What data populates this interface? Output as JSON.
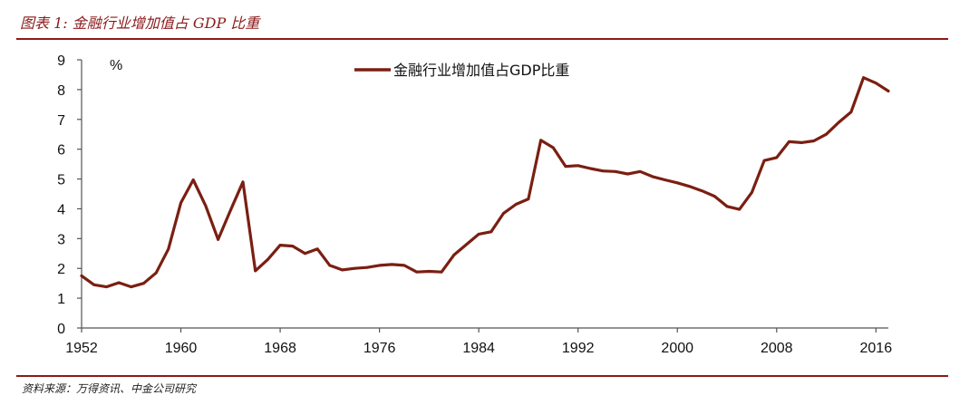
{
  "header": {
    "title": "图表 1: 金融行业增加值占 GDP 比重"
  },
  "footer": {
    "source": "资料来源：万得资讯、中金公司研究"
  },
  "chart_data": {
    "type": "line",
    "unit_label": "%",
    "ylim": [
      0,
      9
    ],
    "yticks": [
      0,
      1,
      2,
      3,
      4,
      5,
      6,
      7,
      8,
      9
    ],
    "xlim": [
      1952,
      2017
    ],
    "xticks": [
      1952,
      1960,
      1968,
      1976,
      1984,
      1992,
      2000,
      2008,
      2016
    ],
    "legend_position": "top-center",
    "line_color": "#7a1f12",
    "series": [
      {
        "name": "金融行业增加值占GDP比重",
        "x": [
          1952,
          1953,
          1954,
          1955,
          1956,
          1957,
          1958,
          1959,
          1960,
          1961,
          1962,
          1963,
          1964,
          1965,
          1966,
          1967,
          1968,
          1969,
          1970,
          1971,
          1972,
          1973,
          1974,
          1975,
          1976,
          1977,
          1978,
          1979,
          1980,
          1981,
          1982,
          1983,
          1984,
          1985,
          1986,
          1987,
          1988,
          1989,
          1990,
          1991,
          1992,
          1993,
          1994,
          1995,
          1996,
          1997,
          1998,
          1999,
          2000,
          2001,
          2002,
          2003,
          2004,
          2005,
          2006,
          2007,
          2008,
          2009,
          2010,
          2011,
          2012,
          2013,
          2014,
          2015,
          2016,
          2017
        ],
        "values": [
          1.75,
          1.45,
          1.38,
          1.52,
          1.38,
          1.5,
          1.85,
          2.65,
          4.2,
          4.97,
          4.1,
          2.97,
          3.95,
          4.9,
          1.92,
          2.3,
          2.78,
          2.75,
          2.5,
          2.65,
          2.1,
          1.95,
          2.0,
          2.03,
          2.1,
          2.13,
          2.1,
          1.88,
          1.9,
          1.88,
          2.45,
          2.8,
          3.15,
          3.23,
          3.85,
          4.15,
          4.33,
          6.3,
          6.05,
          5.42,
          5.45,
          5.35,
          5.27,
          5.25,
          5.17,
          5.25,
          5.08,
          4.97,
          4.87,
          4.75,
          4.6,
          4.42,
          4.08,
          3.98,
          4.55,
          5.62,
          5.72,
          6.25,
          6.22,
          6.28,
          6.5,
          6.9,
          7.25,
          8.4,
          8.22,
          7.95
        ]
      }
    ]
  }
}
